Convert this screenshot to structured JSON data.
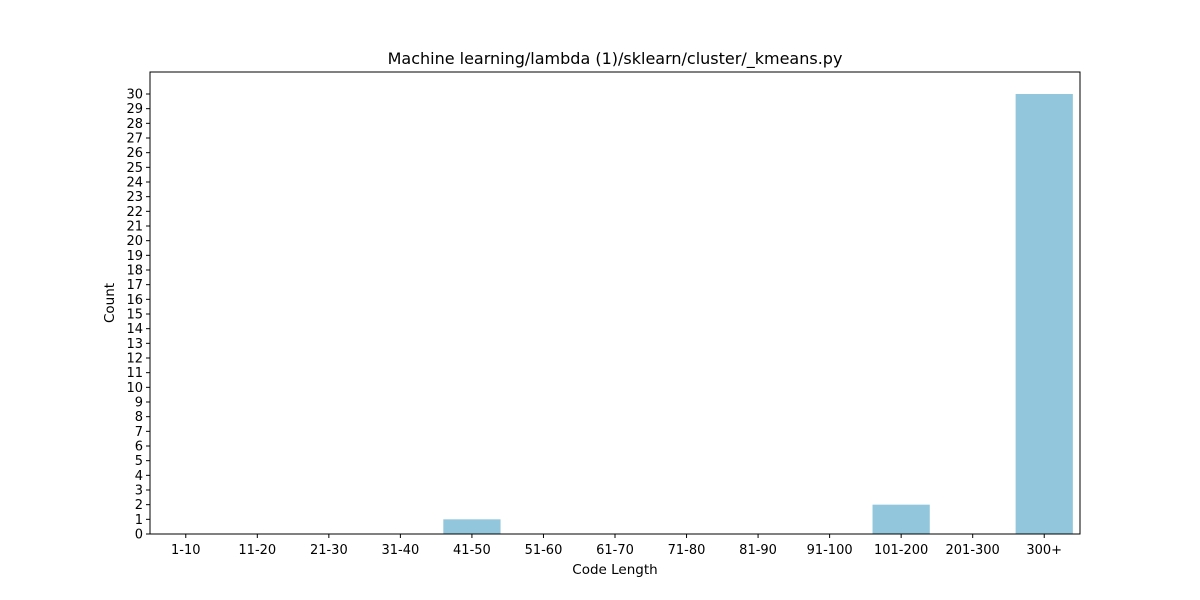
{
  "chart_data": {
    "type": "bar",
    "title": "Machine learning/lambda (1)/sklearn/cluster/_kmeans.py",
    "xlabel": "Code Length",
    "ylabel": "Count",
    "categories": [
      "1-10",
      "11-20",
      "21-30",
      "31-40",
      "41-50",
      "51-60",
      "61-70",
      "71-80",
      "81-90",
      "91-100",
      "101-200",
      "201-300",
      "300+"
    ],
    "values": [
      0,
      0,
      0,
      0,
      1,
      0,
      0,
      0,
      0,
      0,
      2,
      0,
      30
    ],
    "ylim": [
      0,
      31.5
    ],
    "yticks": [
      0,
      1,
      2,
      3,
      4,
      5,
      6,
      7,
      8,
      9,
      10,
      11,
      12,
      13,
      14,
      15,
      16,
      17,
      18,
      19,
      20,
      21,
      22,
      23,
      24,
      25,
      26,
      27,
      28,
      29,
      30
    ],
    "grid": false,
    "colors": {
      "bar": "#92c6dc",
      "axis": "#000000"
    }
  }
}
